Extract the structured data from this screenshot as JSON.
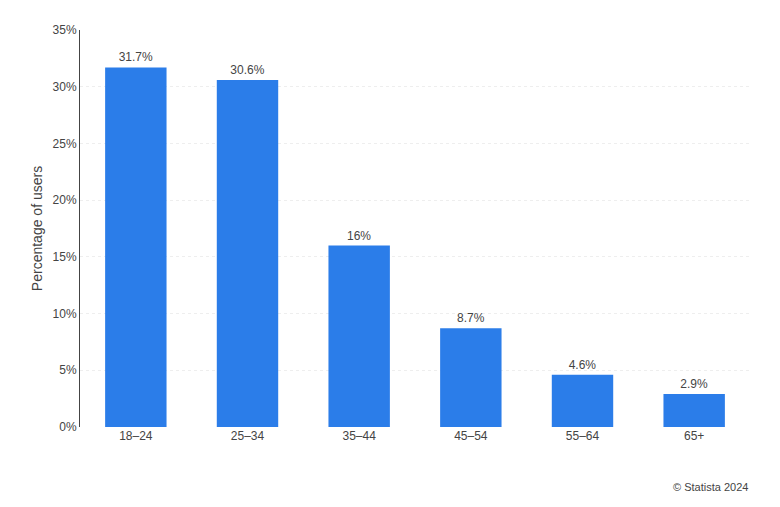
{
  "chart_data": {
    "type": "bar",
    "categories": [
      "18–24",
      "25–34",
      "35–44",
      "45–54",
      "55–64",
      "65+"
    ],
    "values": [
      31.7,
      30.6,
      16.0,
      8.7,
      4.6,
      2.9
    ],
    "value_labels": [
      "31.7%",
      "30.6%",
      "16%",
      "8.7%",
      "4.6%",
      "2.9%"
    ],
    "data_labels": true,
    "color": "#2b7de9",
    "y_label": "Percentage of users",
    "ylim": [
      0,
      35
    ],
    "yticks": [
      {
        "value": 0,
        "label": "0%"
      },
      {
        "value": 5,
        "label": "5%"
      },
      {
        "value": 10,
        "label": "10%"
      },
      {
        "value": 15,
        "label": "15%"
      },
      {
        "value": 20,
        "label": "20%"
      },
      {
        "value": 25,
        "label": "25%"
      },
      {
        "value": 30,
        "label": "30%"
      },
      {
        "value": 35,
        "label": "35%"
      }
    ],
    "grid": true,
    "annotations": [
      "© Statista 2024"
    ]
  }
}
